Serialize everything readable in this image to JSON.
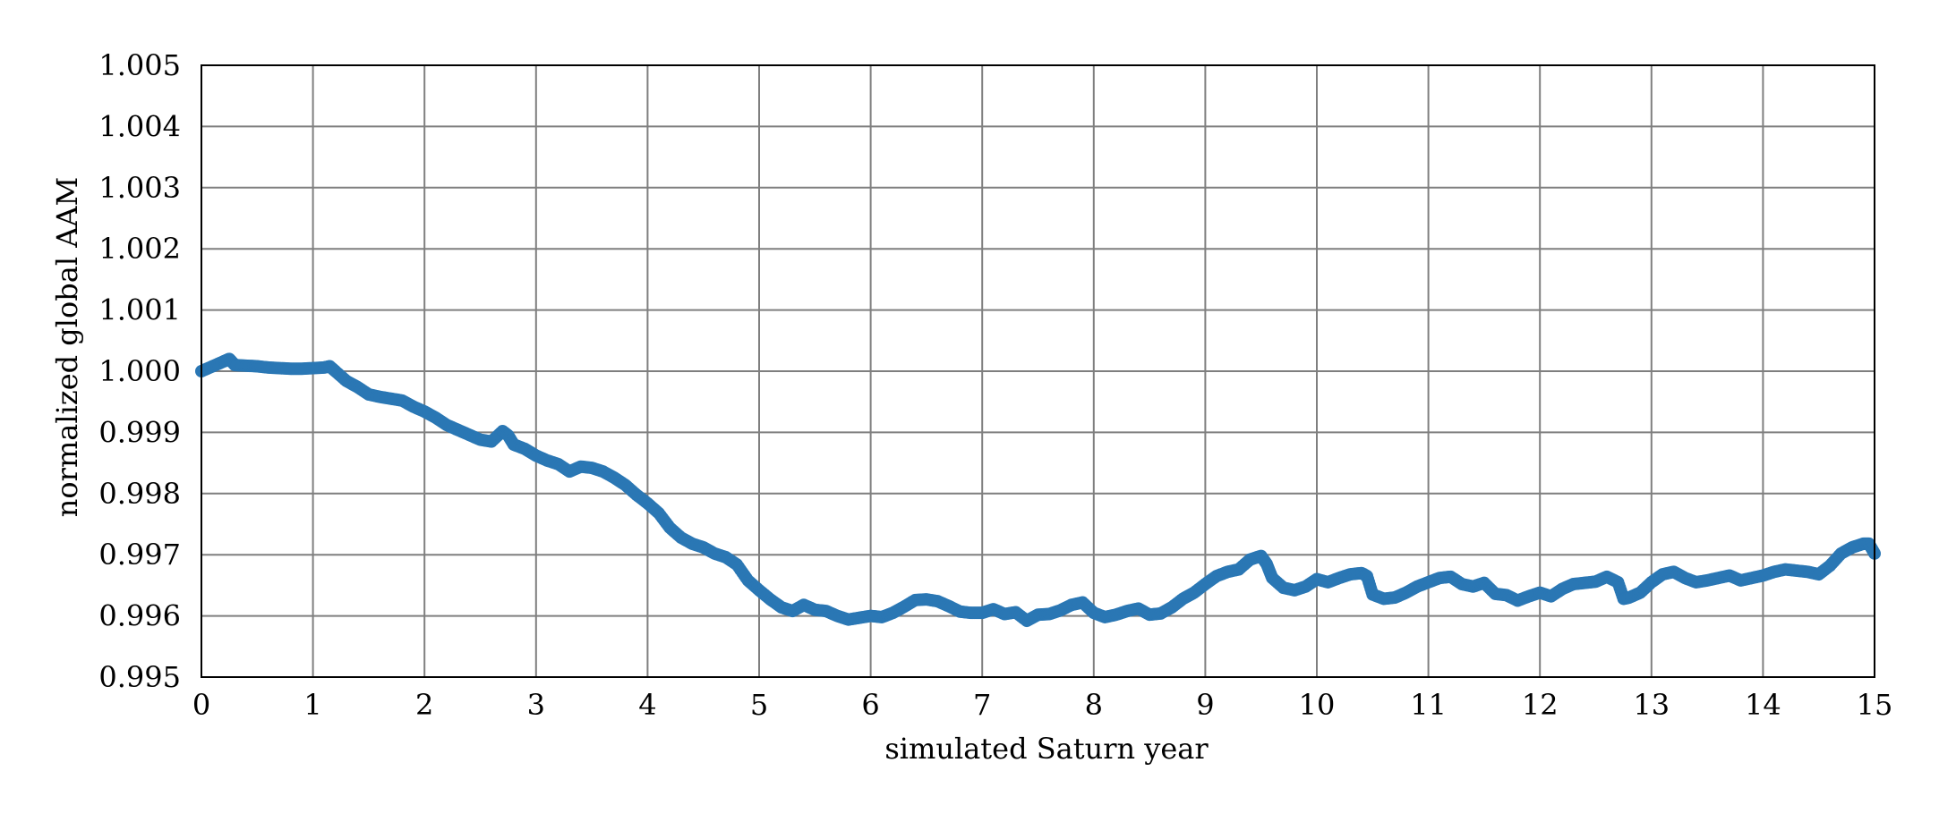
{
  "chart_data": {
    "type": "scatter",
    "title": "",
    "xlabel": "simulated Saturn year",
    "ylabel": "normalized global AAM",
    "xlim": [
      0,
      15
    ],
    "ylim": [
      0.995,
      1.005
    ],
    "x_ticks": [
      0,
      1,
      2,
      3,
      4,
      5,
      6,
      7,
      8,
      9,
      10,
      11,
      12,
      13,
      14,
      15
    ],
    "x_tick_labels": [
      "0",
      "1",
      "2",
      "3",
      "4",
      "5",
      "6",
      "7",
      "8",
      "9",
      "10",
      "11",
      "12",
      "13",
      "14",
      "15"
    ],
    "y_ticks": [
      0.995,
      0.996,
      0.997,
      0.998,
      0.999,
      1.0,
      1.001,
      1.002,
      1.003,
      1.004,
      1.005
    ],
    "y_tick_labels": [
      "0.995",
      "0.996",
      "0.997",
      "0.998",
      "0.999",
      "1.000",
      "1.001",
      "1.002",
      "1.003",
      "1.004",
      "1.005"
    ],
    "grid": true,
    "marker_color": "#2a77b4",
    "series": [
      {
        "points": [
          [
            0.0,
            1.0
          ],
          [
            0.1,
            1.00008
          ],
          [
            0.2,
            1.00016
          ],
          [
            0.25,
            1.0002
          ],
          [
            0.3,
            1.0001
          ],
          [
            0.4,
            1.00009
          ],
          [
            0.5,
            1.00008
          ],
          [
            0.6,
            1.00006
          ],
          [
            0.7,
            1.00005
          ],
          [
            0.8,
            1.00004
          ],
          [
            0.9,
            1.00004
          ],
          [
            1.0,
            1.00005
          ],
          [
            1.1,
            1.00006
          ],
          [
            1.15,
            1.00008
          ],
          [
            1.2,
            1.0
          ],
          [
            1.3,
            0.99984
          ],
          [
            1.4,
            0.99974
          ],
          [
            1.5,
            0.99962
          ],
          [
            1.6,
            0.99958
          ],
          [
            1.7,
            0.99955
          ],
          [
            1.8,
            0.99952
          ],
          [
            1.9,
            0.99942
          ],
          [
            2.0,
            0.99934
          ],
          [
            2.1,
            0.99924
          ],
          [
            2.2,
            0.99912
          ],
          [
            2.3,
            0.99904
          ],
          [
            2.4,
            0.99896
          ],
          [
            2.5,
            0.99888
          ],
          [
            2.6,
            0.99885
          ],
          [
            2.7,
            0.99902
          ],
          [
            2.75,
            0.99895
          ],
          [
            2.8,
            0.9988
          ],
          [
            2.9,
            0.99873
          ],
          [
            3.0,
            0.99862
          ],
          [
            3.1,
            0.99854
          ],
          [
            3.2,
            0.99848
          ],
          [
            3.3,
            0.99836
          ],
          [
            3.4,
            0.99844
          ],
          [
            3.5,
            0.99842
          ],
          [
            3.6,
            0.99836
          ],
          [
            3.7,
            0.99826
          ],
          [
            3.8,
            0.99814
          ],
          [
            3.9,
            0.99798
          ],
          [
            4.0,
            0.99784
          ],
          [
            4.1,
            0.99768
          ],
          [
            4.2,
            0.99744
          ],
          [
            4.3,
            0.99728
          ],
          [
            4.4,
            0.99718
          ],
          [
            4.5,
            0.99712
          ],
          [
            4.6,
            0.99702
          ],
          [
            4.7,
            0.99696
          ],
          [
            4.8,
            0.99684
          ],
          [
            4.9,
            0.99658
          ],
          [
            5.0,
            0.99642
          ],
          [
            5.1,
            0.99627
          ],
          [
            5.2,
            0.99614
          ],
          [
            5.3,
            0.99608
          ],
          [
            5.4,
            0.99618
          ],
          [
            5.5,
            0.9961
          ],
          [
            5.6,
            0.99608
          ],
          [
            5.7,
            0.996
          ],
          [
            5.8,
            0.99594
          ],
          [
            5.9,
            0.99597
          ],
          [
            6.0,
            0.996
          ],
          [
            6.1,
            0.99598
          ],
          [
            6.2,
            0.99605
          ],
          [
            6.3,
            0.99615
          ],
          [
            6.4,
            0.99626
          ],
          [
            6.5,
            0.99627
          ],
          [
            6.6,
            0.99624
          ],
          [
            6.7,
            0.99616
          ],
          [
            6.8,
            0.99607
          ],
          [
            6.9,
            0.99605
          ],
          [
            7.0,
            0.99605
          ],
          [
            7.1,
            0.99611
          ],
          [
            7.2,
            0.99603
          ],
          [
            7.3,
            0.99606
          ],
          [
            7.4,
            0.99592
          ],
          [
            7.5,
            0.99602
          ],
          [
            7.6,
            0.99603
          ],
          [
            7.7,
            0.99609
          ],
          [
            7.8,
            0.99618
          ],
          [
            7.9,
            0.99622
          ],
          [
            8.0,
            0.99605
          ],
          [
            8.1,
            0.99598
          ],
          [
            8.2,
            0.99602
          ],
          [
            8.3,
            0.99608
          ],
          [
            8.4,
            0.99612
          ],
          [
            8.5,
            0.99602
          ],
          [
            8.6,
            0.99604
          ],
          [
            8.7,
            0.99614
          ],
          [
            8.8,
            0.99628
          ],
          [
            8.9,
            0.99638
          ],
          [
            9.0,
            0.99652
          ],
          [
            9.1,
            0.99665
          ],
          [
            9.2,
            0.99672
          ],
          [
            9.3,
            0.99676
          ],
          [
            9.4,
            0.99692
          ],
          [
            9.5,
            0.99698
          ],
          [
            9.55,
            0.99685
          ],
          [
            9.6,
            0.99662
          ],
          [
            9.7,
            0.99646
          ],
          [
            9.8,
            0.99642
          ],
          [
            9.9,
            0.99648
          ],
          [
            10.0,
            0.9966
          ],
          [
            10.1,
            0.99655
          ],
          [
            10.2,
            0.99662
          ],
          [
            10.3,
            0.99668
          ],
          [
            10.4,
            0.9967
          ],
          [
            10.45,
            0.99665
          ],
          [
            10.5,
            0.99635
          ],
          [
            10.6,
            0.99628
          ],
          [
            10.7,
            0.9963
          ],
          [
            10.8,
            0.99638
          ],
          [
            10.9,
            0.99648
          ],
          [
            11.0,
            0.99655
          ],
          [
            11.1,
            0.99662
          ],
          [
            11.2,
            0.99664
          ],
          [
            11.3,
            0.99652
          ],
          [
            11.4,
            0.99648
          ],
          [
            11.5,
            0.99654
          ],
          [
            11.6,
            0.99636
          ],
          [
            11.7,
            0.99634
          ],
          [
            11.8,
            0.99625
          ],
          [
            11.9,
            0.99632
          ],
          [
            12.0,
            0.99638
          ],
          [
            12.1,
            0.99632
          ],
          [
            12.2,
            0.99644
          ],
          [
            12.3,
            0.99652
          ],
          [
            12.4,
            0.99654
          ],
          [
            12.5,
            0.99656
          ],
          [
            12.6,
            0.99664
          ],
          [
            12.7,
            0.99655
          ],
          [
            12.75,
            0.99628
          ],
          [
            12.8,
            0.9963
          ],
          [
            12.9,
            0.99638
          ],
          [
            13.0,
            0.99655
          ],
          [
            13.1,
            0.99668
          ],
          [
            13.2,
            0.99672
          ],
          [
            13.3,
            0.99662
          ],
          [
            13.4,
            0.99655
          ],
          [
            13.5,
            0.99658
          ],
          [
            13.6,
            0.99662
          ],
          [
            13.7,
            0.99666
          ],
          [
            13.8,
            0.99658
          ],
          [
            13.9,
            0.99662
          ],
          [
            14.0,
            0.99666
          ],
          [
            14.1,
            0.99672
          ],
          [
            14.2,
            0.99676
          ],
          [
            14.3,
            0.99674
          ],
          [
            14.4,
            0.99672
          ],
          [
            14.5,
            0.99668
          ],
          [
            14.6,
            0.99682
          ],
          [
            14.7,
            0.99702
          ],
          [
            14.8,
            0.99712
          ],
          [
            14.9,
            0.99718
          ],
          [
            14.95,
            0.99718
          ],
          [
            15.0,
            0.99702
          ]
        ]
      }
    ]
  }
}
